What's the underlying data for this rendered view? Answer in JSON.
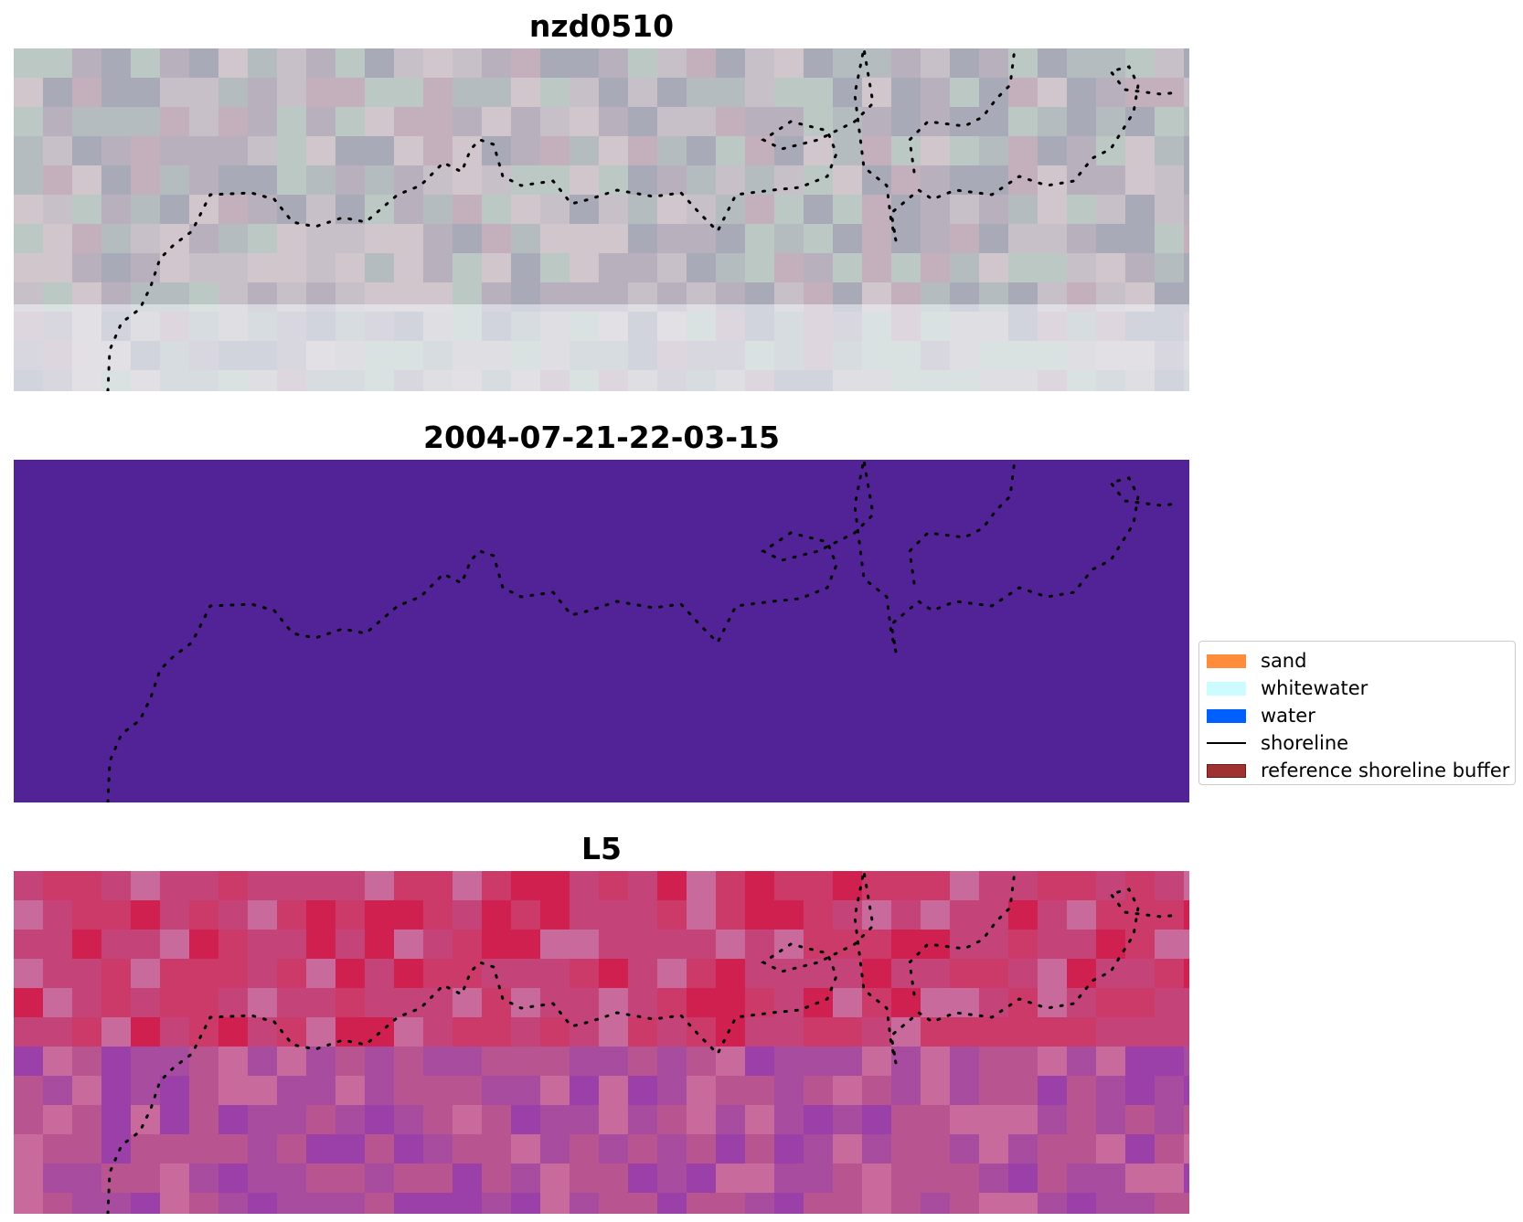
{
  "panels": [
    {
      "title": "nzd0510",
      "kind": "rgb"
    },
    {
      "title": "2004-07-21-22-03-15",
      "kind": "classified",
      "fill": "#512396"
    },
    {
      "title": "L5",
      "kind": "index"
    }
  ],
  "legend": {
    "items": [
      {
        "label": "sand",
        "type": "patch",
        "color": "#ff8c3a"
      },
      {
        "label": "whitewater",
        "type": "patch",
        "color": "#ccfcff"
      },
      {
        "label": "water",
        "type": "patch",
        "color": "#0060ff"
      },
      {
        "label": "shoreline",
        "type": "line",
        "color": "#000000"
      },
      {
        "label": "reference shoreline buffer",
        "type": "patch",
        "color": "#9e3232"
      }
    ]
  },
  "colors": {
    "shoreline_dots": "#000000",
    "rgb_palette": [
      "#b8b0bc",
      "#c8c0c8",
      "#a8aab8",
      "#d0c6cc",
      "#b4bcc0",
      "#c4b0bc",
      "#bcc8c4"
    ],
    "index_palette": [
      "#cc3a6a",
      "#c4447a",
      "#b85490",
      "#a84ca0",
      "#9a40a8",
      "#d02050",
      "#c86a9c"
    ]
  }
}
